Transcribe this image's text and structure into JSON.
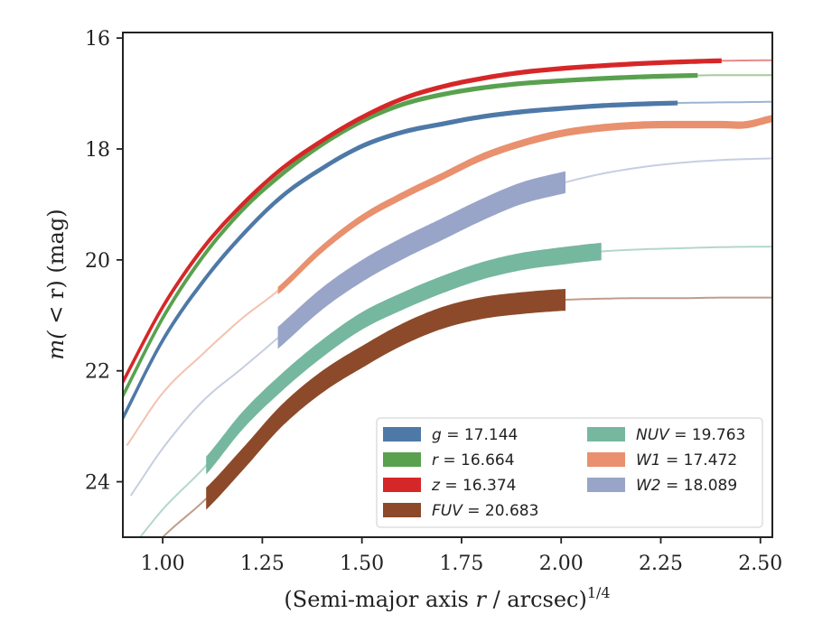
{
  "chart_data": {
    "type": "line",
    "xlabel_pre": "(Semi-major axis ",
    "xlabel_var": "r",
    "xlabel_post": " / arcsec)",
    "xlabel_sup": "1/4",
    "ylabel_pre": "m(",
    "ylabel_mid": " < r",
    "ylabel_post": ") (mag)",
    "xlim": [
      0.9,
      2.53
    ],
    "ylim": [
      25.0,
      15.9
    ],
    "y_inverted": true,
    "xticks": [
      "1.00",
      "1.25",
      "1.50",
      "1.75",
      "2.00",
      "2.25",
      "2.50"
    ],
    "yticks": [
      "16",
      "18",
      "20",
      "22",
      "24"
    ],
    "grid": false,
    "legend_position": "lower-right",
    "legend_columns": 2,
    "series": [
      {
        "key": "g",
        "name_var": "g",
        "name_val": " = 17.144",
        "color": "#4e79a7",
        "band_width": 0.05,
        "measured_range": [
          0.9,
          2.29
        ],
        "x": [
          0.9,
          1.0,
          1.1,
          1.2,
          1.3,
          1.4,
          1.5,
          1.6,
          1.7,
          1.8,
          1.9,
          2.0,
          2.1,
          2.2,
          2.3,
          2.4,
          2.53
        ],
        "y": [
          22.85,
          21.45,
          20.4,
          19.55,
          18.85,
          18.35,
          17.95,
          17.7,
          17.55,
          17.42,
          17.33,
          17.27,
          17.22,
          17.19,
          17.17,
          17.16,
          17.15
        ]
      },
      {
        "key": "r",
        "name_var": "r",
        "name_val": " = 16.664",
        "color": "#59a14f",
        "band_width": 0.05,
        "measured_range": [
          0.9,
          2.34
        ],
        "x": [
          0.9,
          1.0,
          1.1,
          1.2,
          1.3,
          1.4,
          1.5,
          1.6,
          1.7,
          1.8,
          1.9,
          2.0,
          2.1,
          2.2,
          2.3,
          2.4,
          2.53
        ],
        "y": [
          22.45,
          21.05,
          19.95,
          19.1,
          18.45,
          17.92,
          17.5,
          17.2,
          17.02,
          16.9,
          16.82,
          16.77,
          16.73,
          16.7,
          16.68,
          16.67,
          16.67
        ]
      },
      {
        "key": "z",
        "name_var": "z",
        "name_val": " = 16.374",
        "color": "#d62728",
        "band_width": 0.05,
        "measured_range": [
          0.9,
          2.4
        ],
        "x": [
          0.9,
          1.0,
          1.1,
          1.2,
          1.3,
          1.4,
          1.5,
          1.6,
          1.7,
          1.8,
          1.9,
          2.0,
          2.1,
          2.2,
          2.3,
          2.4,
          2.53
        ],
        "y": [
          22.2,
          20.85,
          19.8,
          19.0,
          18.35,
          17.85,
          17.43,
          17.1,
          16.88,
          16.73,
          16.62,
          16.55,
          16.5,
          16.46,
          16.43,
          16.41,
          16.4
        ]
      },
      {
        "key": "FUV",
        "name_var": "FUV",
        "name_val": " = 20.683",
        "color": "#8c4a2a",
        "band_width": 0.38,
        "measured_range": [
          1.11,
          2.01
        ],
        "x": [
          0.95,
          1.0,
          1.11,
          1.2,
          1.3,
          1.4,
          1.5,
          1.6,
          1.7,
          1.8,
          1.9,
          2.01,
          2.1,
          2.2,
          2.3,
          2.4,
          2.53
        ],
        "y": [
          25.4,
          25.0,
          24.3,
          23.6,
          22.8,
          22.2,
          21.75,
          21.35,
          21.05,
          20.87,
          20.78,
          20.72,
          20.7,
          20.69,
          20.69,
          20.68,
          20.68
        ]
      },
      {
        "key": "NUV",
        "name_var": "NUV",
        "name_val": " = 19.763",
        "color": "#76b7a0",
        "band_width": 0.3,
        "measured_range": [
          1.11,
          2.1
        ],
        "x": [
          0.9,
          1.0,
          1.11,
          1.2,
          1.3,
          1.4,
          1.5,
          1.6,
          1.7,
          1.8,
          1.9,
          2.0,
          2.1,
          2.2,
          2.3,
          2.4,
          2.53
        ],
        "y": [
          25.4,
          24.5,
          23.7,
          22.9,
          22.2,
          21.6,
          21.1,
          20.75,
          20.45,
          20.2,
          20.03,
          19.93,
          19.85,
          19.81,
          19.79,
          19.77,
          19.76
        ]
      },
      {
        "key": "W1",
        "name_var": "W1",
        "name_val": " = 17.472",
        "color": "#e9906e",
        "band_width": 0.12,
        "measured_range": [
          1.29,
          2.53
        ],
        "x": [
          0.91,
          1.0,
          1.1,
          1.2,
          1.29,
          1.4,
          1.5,
          1.6,
          1.7,
          1.8,
          1.9,
          2.0,
          2.1,
          2.2,
          2.3,
          2.4,
          2.45,
          2.53
        ],
        "y": [
          23.35,
          22.4,
          21.7,
          21.05,
          20.55,
          19.8,
          19.25,
          18.85,
          18.5,
          18.15,
          17.9,
          17.72,
          17.62,
          17.57,
          17.56,
          17.56,
          17.57,
          17.45
        ]
      },
      {
        "key": "W2",
        "name_var": "W2",
        "name_val": " = 18.089",
        "color": "#98a5c8",
        "band_width": 0.38,
        "measured_range": [
          1.29,
          2.01
        ],
        "x": [
          0.92,
          1.0,
          1.1,
          1.2,
          1.29,
          1.4,
          1.5,
          1.6,
          1.7,
          1.8,
          1.9,
          2.01,
          2.1,
          2.2,
          2.3,
          2.4,
          2.53
        ],
        "y": [
          24.25,
          23.4,
          22.55,
          21.95,
          21.4,
          20.7,
          20.2,
          19.8,
          19.45,
          19.1,
          18.8,
          18.6,
          18.45,
          18.33,
          18.25,
          18.2,
          18.17
        ]
      }
    ],
    "legend_order": [
      [
        "g",
        "r",
        "z",
        "FUV"
      ],
      [
        "NUV",
        "W1",
        "W2"
      ]
    ]
  }
}
